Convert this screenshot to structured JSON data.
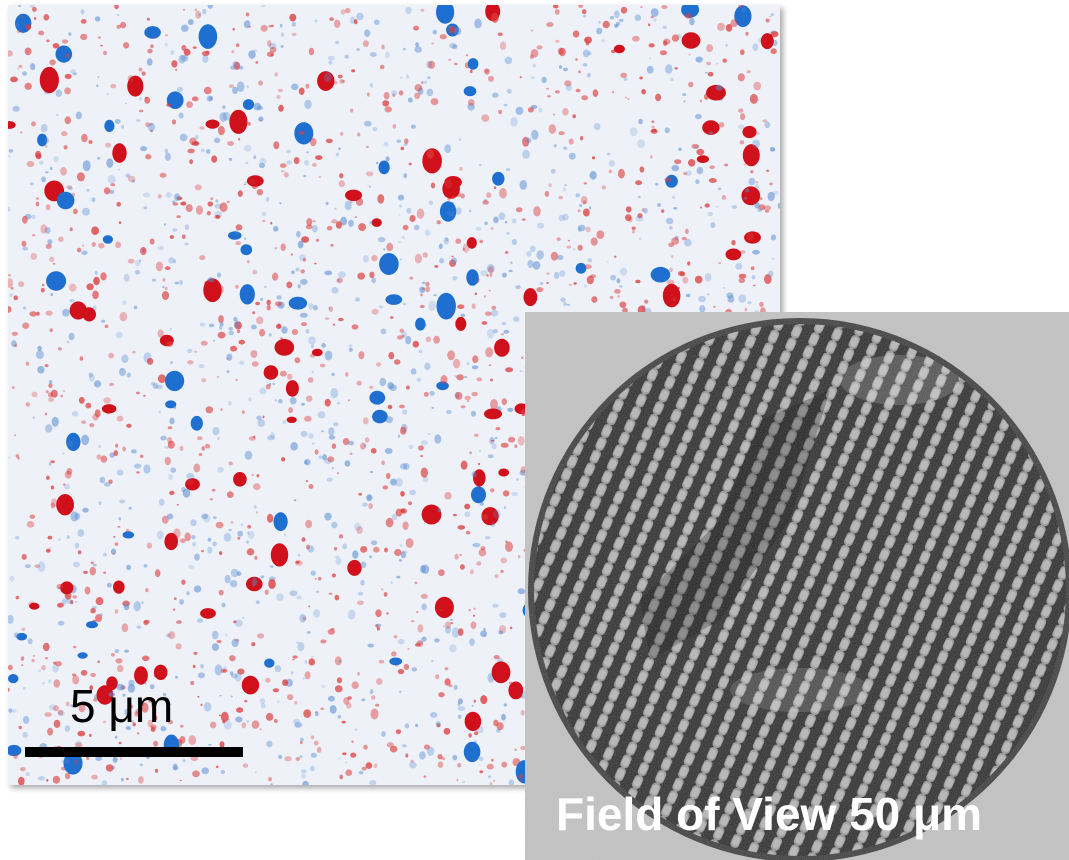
{
  "scale_bar": {
    "label": "5 μm"
  },
  "inset": {
    "caption": "Field of View 50 μm"
  }
}
